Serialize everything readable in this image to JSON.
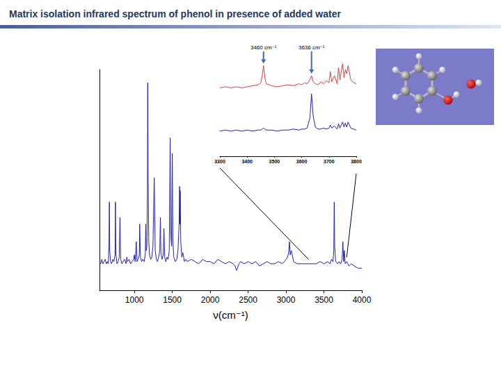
{
  "title": "Matrix isolation infrared spectrum of phenol in presence of added water",
  "chart_data": [
    {
      "type": "line",
      "x_label": "ν(cm⁻¹)",
      "color": "#1F1FC0",
      "xlim": [
        540,
        4000
      ],
      "xticks": [
        1000,
        1500,
        2000,
        2500,
        3000,
        3500,
        4000
      ],
      "ylim": [
        0,
        1
      ],
      "tick_labels": "x",
      "grid": false,
      "x": [
        540,
        555,
        570,
        585,
        600,
        615,
        630,
        645,
        655,
        665,
        670,
        675,
        685,
        700,
        715,
        730,
        745,
        750,
        755,
        770,
        785,
        800,
        810,
        820,
        835,
        850,
        870,
        890,
        900,
        910,
        930,
        950,
        970,
        990,
        1000,
        1010,
        1025,
        1035,
        1050,
        1065,
        1070,
        1080,
        1095,
        1110,
        1130,
        1145,
        1150,
        1155,
        1165,
        1172,
        1176,
        1182,
        1190,
        1200,
        1215,
        1230,
        1245,
        1255,
        1262,
        1275,
        1290,
        1305,
        1320,
        1335,
        1343,
        1350,
        1365,
        1380,
        1390,
        1400,
        1415,
        1430,
        1445,
        1460,
        1472,
        1480,
        1490,
        1500,
        1508,
        1520,
        1540,
        1560,
        1575,
        1590,
        1596,
        1600,
        1605,
        1612,
        1625,
        1640,
        1660,
        1680,
        1700,
        1750,
        1800,
        1850,
        1900,
        1950,
        2000,
        2050,
        2100,
        2150,
        2200,
        2250,
        2300,
        2330,
        2345,
        2360,
        2380,
        2400,
        2450,
        2500,
        2550,
        2600,
        2650,
        2700,
        2750,
        2800,
        2850,
        2900,
        2950,
        2980,
        3000,
        3020,
        3035,
        3045,
        3055,
        3070,
        3100,
        3150,
        3200,
        3250,
        3300,
        3350,
        3400,
        3450,
        3500,
        3550,
        3580,
        3600,
        3620,
        3630,
        3636,
        3642,
        3655,
        3680,
        3700,
        3720,
        3740,
        3750,
        3760,
        3770,
        3780,
        3800,
        3830,
        3860,
        3900,
        3950,
        4000
      ],
      "values": [
        0.13,
        0.12,
        0.14,
        0.12,
        0.13,
        0.14,
        0.12,
        0.13,
        0.12,
        0.2,
        0.4,
        0.18,
        0.13,
        0.12,
        0.14,
        0.13,
        0.16,
        0.4,
        0.17,
        0.12,
        0.13,
        0.15,
        0.33,
        0.14,
        0.12,
        0.13,
        0.14,
        0.12,
        0.15,
        0.13,
        0.14,
        0.12,
        0.13,
        0.14,
        0.16,
        0.13,
        0.22,
        0.13,
        0.14,
        0.16,
        0.3,
        0.15,
        0.13,
        0.14,
        0.13,
        0.17,
        0.3,
        0.18,
        0.2,
        0.45,
        0.94,
        0.5,
        0.22,
        0.16,
        0.14,
        0.15,
        0.2,
        0.38,
        0.51,
        0.18,
        0.14,
        0.13,
        0.15,
        0.18,
        0.33,
        0.17,
        0.14,
        0.16,
        0.28,
        0.15,
        0.13,
        0.15,
        0.14,
        0.18,
        0.69,
        0.25,
        0.2,
        0.62,
        0.22,
        0.15,
        0.13,
        0.14,
        0.18,
        0.3,
        0.47,
        0.3,
        0.45,
        0.22,
        0.15,
        0.17,
        0.13,
        0.14,
        0.13,
        0.14,
        0.13,
        0.12,
        0.14,
        0.13,
        0.13,
        0.12,
        0.14,
        0.13,
        0.12,
        0.13,
        0.12,
        0.11,
        0.09,
        0.1,
        0.12,
        0.13,
        0.12,
        0.13,
        0.12,
        0.13,
        0.11,
        0.12,
        0.13,
        0.12,
        0.12,
        0.13,
        0.12,
        0.13,
        0.14,
        0.15,
        0.17,
        0.22,
        0.16,
        0.18,
        0.13,
        0.12,
        0.12,
        0.12,
        0.12,
        0.12,
        0.12,
        0.13,
        0.12,
        0.13,
        0.12,
        0.14,
        0.13,
        0.18,
        0.4,
        0.2,
        0.13,
        0.12,
        0.13,
        0.12,
        0.14,
        0.22,
        0.13,
        0.18,
        0.12,
        0.13,
        0.11,
        0.12,
        0.11,
        0.1,
        0.1
      ]
    },
    {
      "type": "line",
      "xlim": [
        3300,
        3800
      ],
      "xticks": [
        3300,
        3400,
        3500,
        3600,
        3700,
        3800
      ],
      "ylim": [
        0,
        1
      ],
      "tick_labels": "x",
      "grid": false,
      "annotations": [
        {
          "x": 3460,
          "text": "3460 cm⁻¹"
        },
        {
          "x": 3636,
          "text": "3636 cm⁻¹"
        }
      ],
      "x": [
        3300,
        3320,
        3340,
        3360,
        3380,
        3400,
        3420,
        3440,
        3450,
        3455,
        3460,
        3465,
        3470,
        3490,
        3510,
        3530,
        3550,
        3570,
        3590,
        3600,
        3610,
        3620,
        3630,
        3636,
        3642,
        3650,
        3660,
        3670,
        3680,
        3690,
        3700,
        3705,
        3710,
        3720,
        3730,
        3735,
        3740,
        3750,
        3755,
        3760,
        3765,
        3770,
        3780,
        3790,
        3800
      ],
      "series": [
        {
          "color": "#E03C3C",
          "values": [
            0.68,
            0.69,
            0.68,
            0.69,
            0.68,
            0.69,
            0.7,
            0.71,
            0.73,
            0.8,
            0.9,
            0.78,
            0.72,
            0.7,
            0.69,
            0.7,
            0.71,
            0.7,
            0.72,
            0.71,
            0.73,
            0.72,
            0.76,
            0.8,
            0.74,
            0.72,
            0.71,
            0.74,
            0.72,
            0.75,
            0.73,
            0.84,
            0.74,
            0.8,
            0.72,
            0.88,
            0.76,
            0.92,
            0.78,
            0.86,
            0.82,
            0.9,
            0.76,
            0.73,
            0.72
          ]
        },
        {
          "color": "#1F1FC0",
          "values": [
            0.25,
            0.26,
            0.25,
            0.26,
            0.25,
            0.26,
            0.25,
            0.26,
            0.26,
            0.27,
            0.28,
            0.27,
            0.26,
            0.26,
            0.25,
            0.26,
            0.26,
            0.27,
            0.26,
            0.27,
            0.27,
            0.28,
            0.38,
            0.62,
            0.4,
            0.29,
            0.27,
            0.27,
            0.28,
            0.27,
            0.28,
            0.31,
            0.28,
            0.3,
            0.27,
            0.32,
            0.28,
            0.34,
            0.29,
            0.33,
            0.29,
            0.34,
            0.28,
            0.27,
            0.26
          ]
        }
      ]
    }
  ]
}
